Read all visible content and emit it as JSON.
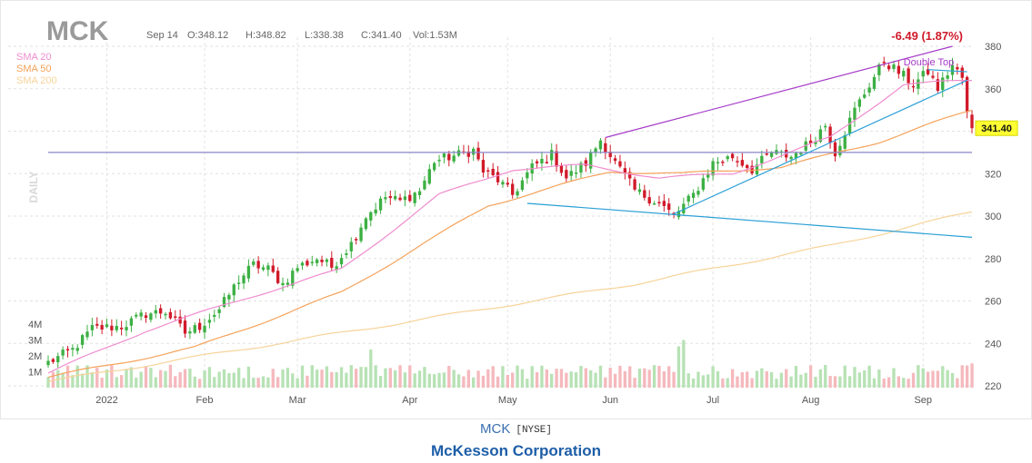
{
  "header": {
    "ticker": "MCK",
    "date": "Sep 14",
    "open": "O:348.12",
    "high": "H:348.82",
    "low": "L:338.38",
    "close": "C:341.40",
    "volume": "Vol:1.53M",
    "change": "-6.49 (1.87%)"
  },
  "legend": [
    {
      "label": "SMA 20",
      "color": "#f08ccf"
    },
    {
      "label": "SMA 50",
      "color": "#f5a25a"
    },
    {
      "label": "SMA 200",
      "color": "#f7d39a"
    }
  ],
  "side_label": "DAILY",
  "price_tag": "341.40",
  "annotation": "Double Top",
  "footer": {
    "ticker": "MCK",
    "exchange": "[NYSE]",
    "company": "McKesson Corporation"
  },
  "colors": {
    "up": "#3cb043",
    "down": "#d11a2a",
    "change": "#d11a2a",
    "trend_purple": "#a63bc8",
    "trend_blue": "#2a9fd6",
    "level": "#8a86c9"
  },
  "chart_data": {
    "type": "candlestick",
    "ylim": [
      220,
      380
    ],
    "y_ticks": [
      220,
      240,
      260,
      280,
      300,
      320,
      340,
      360,
      380
    ],
    "x_tick_labels": [
      {
        "label": "2022",
        "index": 12
      },
      {
        "label": "Feb",
        "index": 32
      },
      {
        "label": "Mar",
        "index": 51
      },
      {
        "label": "Apr",
        "index": 74
      },
      {
        "label": "May",
        "index": 94
      },
      {
        "label": "Jun",
        "index": 115
      },
      {
        "label": "Jul",
        "index": 136
      },
      {
        "label": "Aug",
        "index": 156
      },
      {
        "label": "Sep",
        "index": 179
      }
    ],
    "volume_ticks": [
      "4M",
      "3M",
      "2M",
      "1M"
    ],
    "volume_tick_values": [
      4,
      3,
      2,
      1
    ],
    "key_points": [
      {
        "i": 0,
        "p": 231
      },
      {
        "i": 5,
        "p": 237
      },
      {
        "i": 9,
        "p": 247
      },
      {
        "i": 15,
        "p": 248
      },
      {
        "i": 20,
        "p": 254
      },
      {
        "i": 24,
        "p": 255
      },
      {
        "i": 28,
        "p": 245
      },
      {
        "i": 31,
        "p": 248
      },
      {
        "i": 35,
        "p": 256
      },
      {
        "i": 39,
        "p": 270
      },
      {
        "i": 42,
        "p": 277
      },
      {
        "i": 45,
        "p": 275
      },
      {
        "i": 48,
        "p": 268
      },
      {
        "i": 51,
        "p": 276
      },
      {
        "i": 55,
        "p": 280
      },
      {
        "i": 58,
        "p": 276
      },
      {
        "i": 62,
        "p": 287
      },
      {
        "i": 65,
        "p": 300
      },
      {
        "i": 69,
        "p": 309
      },
      {
        "i": 72,
        "p": 307
      },
      {
        "i": 76,
        "p": 312
      },
      {
        "i": 79,
        "p": 326
      },
      {
        "i": 84,
        "p": 329
      },
      {
        "i": 87,
        "p": 331
      },
      {
        "i": 89,
        "p": 321
      },
      {
        "i": 92,
        "p": 317
      },
      {
        "i": 95,
        "p": 310
      },
      {
        "i": 99,
        "p": 323
      },
      {
        "i": 103,
        "p": 329
      },
      {
        "i": 106,
        "p": 318
      },
      {
        "i": 110,
        "p": 325
      },
      {
        "i": 113,
        "p": 336
      },
      {
        "i": 116,
        "p": 325
      },
      {
        "i": 120,
        "p": 312
      },
      {
        "i": 125,
        "p": 306
      },
      {
        "i": 128,
        "p": 300
      },
      {
        "i": 132,
        "p": 310
      },
      {
        "i": 136,
        "p": 325
      },
      {
        "i": 140,
        "p": 328
      },
      {
        "i": 144,
        "p": 322
      },
      {
        "i": 148,
        "p": 330
      },
      {
        "i": 152,
        "p": 328
      },
      {
        "i": 156,
        "p": 335
      },
      {
        "i": 159,
        "p": 343
      },
      {
        "i": 161,
        "p": 330
      },
      {
        "i": 165,
        "p": 350
      },
      {
        "i": 168,
        "p": 362
      },
      {
        "i": 171,
        "p": 373
      },
      {
        "i": 175,
        "p": 366
      },
      {
        "i": 177,
        "p": 362
      },
      {
        "i": 180,
        "p": 368
      },
      {
        "i": 182,
        "p": 360
      },
      {
        "i": 185,
        "p": 371
      },
      {
        "i": 187,
        "p": 365
      },
      {
        "i": 188,
        "p": 348
      },
      {
        "i": 189,
        "p": 341.4
      }
    ],
    "trendlines": [
      {
        "name": "upper-channel",
        "color": "purple",
        "from": {
          "i": 114,
          "p": 337
        },
        "to": {
          "i": 185,
          "p": 380
        }
      },
      {
        "name": "lower-channel",
        "color": "blue",
        "from": {
          "i": 98,
          "p": 306
        },
        "to": {
          "i": 189,
          "p": 290
        }
      },
      {
        "name": "support-trend",
        "color": "blue",
        "from": {
          "i": 128,
          "p": 301
        },
        "to": {
          "i": 188,
          "p": 364
        }
      },
      {
        "name": "double-top-neck",
        "color": "blue",
        "from": {
          "i": 180,
          "p": 369
        },
        "to": {
          "i": 188,
          "p": 368
        }
      }
    ],
    "horizontal_level": 330,
    "sma200_points": [
      {
        "i": 0,
        "p": 222
      },
      {
        "i": 60,
        "p": 245
      },
      {
        "i": 120,
        "p": 268
      },
      {
        "i": 160,
        "p": 286
      },
      {
        "i": 189,
        "p": 302
      }
    ],
    "sma50_points": [
      {
        "i": 0,
        "p": 224
      },
      {
        "i": 30,
        "p": 238
      },
      {
        "i": 60,
        "p": 264
      },
      {
        "i": 90,
        "p": 305
      },
      {
        "i": 115,
        "p": 321
      },
      {
        "i": 130,
        "p": 320
      },
      {
        "i": 150,
        "p": 323
      },
      {
        "i": 170,
        "p": 335
      },
      {
        "i": 189,
        "p": 350
      }
    ],
    "sma20_points": [
      {
        "i": 0,
        "p": 226
      },
      {
        "i": 20,
        "p": 246
      },
      {
        "i": 40,
        "p": 261
      },
      {
        "i": 60,
        "p": 275
      },
      {
        "i": 80,
        "p": 310
      },
      {
        "i": 95,
        "p": 322
      },
      {
        "i": 110,
        "p": 324
      },
      {
        "i": 125,
        "p": 318
      },
      {
        "i": 140,
        "p": 320
      },
      {
        "i": 160,
        "p": 337
      },
      {
        "i": 175,
        "p": 362
      },
      {
        "i": 189,
        "p": 364
      }
    ],
    "volume_spikes": [
      {
        "i": 66,
        "v": 2.4
      },
      {
        "i": 129,
        "v": 2.6
      },
      {
        "i": 130,
        "v": 3.0
      }
    ]
  }
}
